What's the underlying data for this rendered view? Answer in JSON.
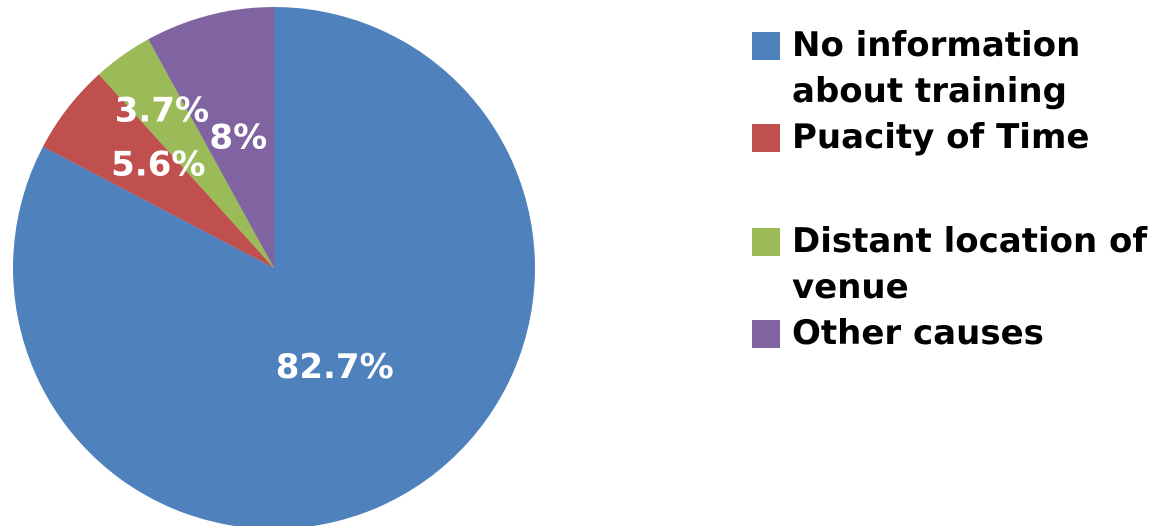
{
  "chart_data": {
    "type": "pie",
    "title": "",
    "start_angle_deg": 0,
    "direction": "clockwise",
    "slices": [
      {
        "label": "No information about training",
        "legend_text": "No information\nabout training",
        "value": 82.7,
        "display": "82.7%",
        "color": "#4F81BD"
      },
      {
        "label": "Puacity of Time",
        "legend_text": "Puacity of Time",
        "value": 5.6,
        "display": "5.6%",
        "color": "#C0504D"
      },
      {
        "label": "Distant location of venue",
        "legend_text": "Distant location of\nvenue",
        "value": 3.7,
        "display": "3.7%",
        "color": "#9BBB59"
      },
      {
        "label": "Other causes",
        "legend_text": "Other causes",
        "value": 8,
        "display": "8%",
        "color": "#8064A2"
      }
    ],
    "legend_position": "right"
  }
}
